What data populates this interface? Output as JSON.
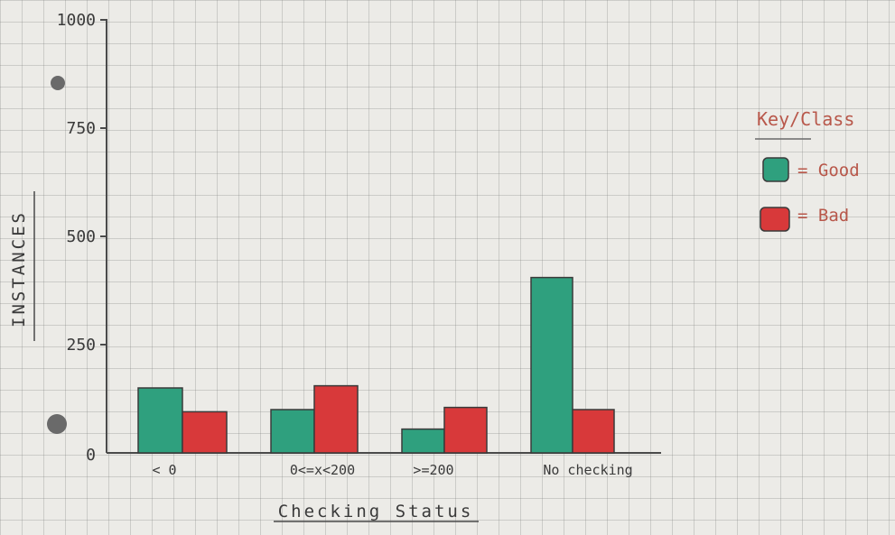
{
  "chart_data": {
    "type": "bar",
    "title": "",
    "xlabel": "Checking Status",
    "ylabel": "INSTANCES",
    "ylim": [
      0,
      1000
    ],
    "yticks": [
      "0",
      "250",
      "500",
      "750",
      "1000"
    ],
    "categories": [
      "< 0",
      "0<=x<200",
      ">=200",
      "No checking"
    ],
    "series": [
      {
        "name": "Good",
        "values": [
          150,
          100,
          55,
          405
        ],
        "color": "#2fa07e"
      },
      {
        "name": "Bad",
        "values": [
          95,
          155,
          105,
          100
        ],
        "color": "#d8393a"
      }
    ],
    "legend": {
      "title": "Key/Class",
      "position": "right",
      "entries": [
        "= Good",
        "= Bad"
      ]
    },
    "grid": true
  }
}
